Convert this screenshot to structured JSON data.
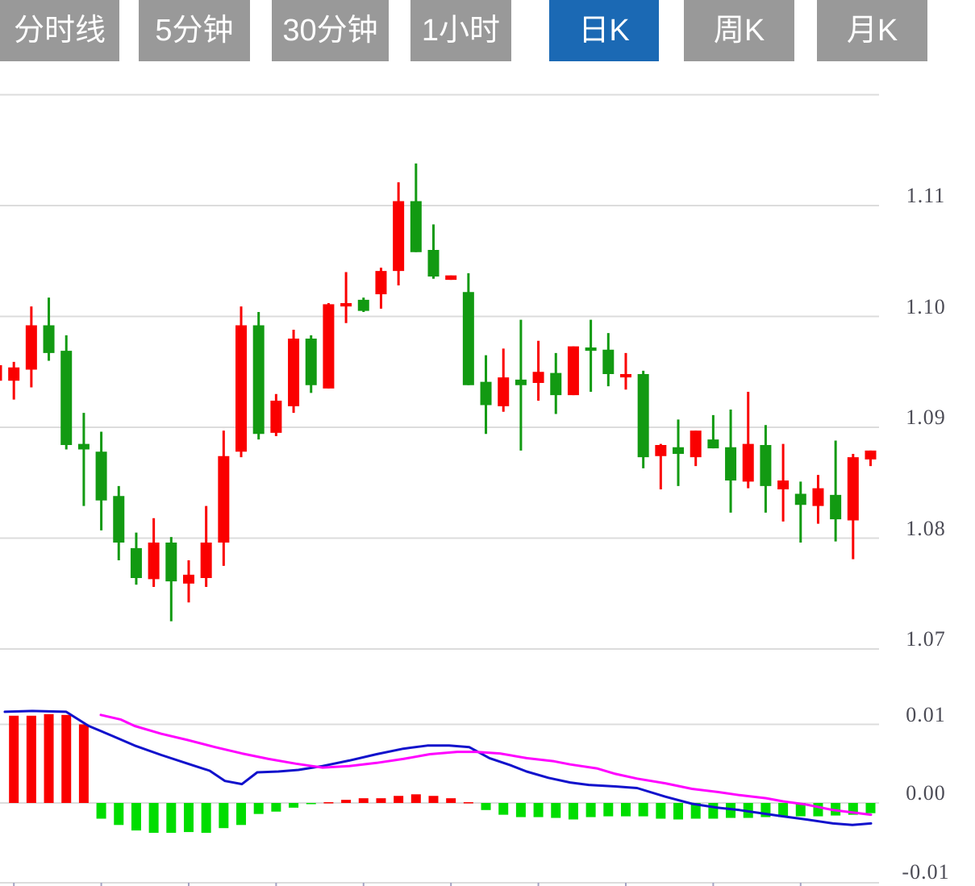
{
  "tabbar": {
    "tabs": [
      {
        "id": "timeline",
        "label": "分时线",
        "active": false
      },
      {
        "id": "5min",
        "label": "5分钟",
        "active": false
      },
      {
        "id": "30min",
        "label": "30分钟",
        "active": false
      },
      {
        "id": "1hour",
        "label": "1小时",
        "active": false
      },
      {
        "id": "daily-k",
        "label": "日K",
        "active": true
      },
      {
        "id": "weekly-k",
        "label": "周K",
        "active": false
      },
      {
        "id": "monthly-k",
        "label": "月K",
        "active": false
      }
    ]
  },
  "colors": {
    "bullish_candle": "#fa0000",
    "bearish_candle": "#129a12",
    "macd_bar_positive": "#fa0000",
    "macd_bar_negative": "#00dd00",
    "dif_line": "#1111cc",
    "dea_line": "#ff00ff",
    "gridline": "#dcdcdc",
    "axis_label": "#4b4b55",
    "axis_tick": "#a3a3c2",
    "tab_background": "#999999",
    "tab_active_background": "#1b69b4",
    "tab_text": "#ffffff"
  },
  "chart_data": {
    "type": "candlestick_with_macd",
    "price_axis": {
      "labels": [
        "1.11",
        "1.10",
        "1.09",
        "1.08",
        "1.07"
      ],
      "label_values": [
        1.11,
        1.1,
        1.09,
        1.08,
        1.07
      ],
      "gridline_values": [
        1.12,
        1.11,
        1.1,
        1.09,
        1.08,
        1.07
      ],
      "ylim": [
        1.065,
        1.12
      ],
      "grid": true,
      "legend": "none"
    },
    "macd_axis": {
      "labels": [
        "0.01",
        "0.00",
        "-0.01"
      ],
      "label_values": [
        0.01,
        0,
        -0.01
      ],
      "gridline_values": [
        0.01,
        0,
        -0.01
      ],
      "ylim": [
        -0.011,
        0.012
      ]
    },
    "candles_ohlc": [
      [
        1.0942,
        1.0956,
        1.0942,
        1.0956
      ],
      [
        1.0942,
        1.0959,
        1.0925,
        1.0954
      ],
      [
        1.0952,
        1.1009,
        1.0936,
        1.0992
      ],
      [
        1.0992,
        1.1017,
        1.096,
        1.0967
      ],
      [
        1.0969,
        1.0983,
        1.088,
        1.0884
      ],
      [
        1.0885,
        1.0913,
        1.0829,
        1.088
      ],
      [
        1.0878,
        1.0896,
        1.0807,
        1.0834
      ],
      [
        1.0838,
        1.0847,
        1.078,
        1.0796
      ],
      [
        1.0791,
        1.0805,
        1.0758,
        1.0764
      ],
      [
        1.0763,
        1.0818,
        1.0756,
        1.0796
      ],
      [
        1.0796,
        1.0801,
        1.0725,
        1.0761
      ],
      [
        1.0759,
        1.078,
        1.0742,
        1.0767
      ],
      [
        1.0764,
        1.0829,
        1.0756,
        1.0796
      ],
      [
        1.0796,
        1.0897,
        1.0775,
        1.0874
      ],
      [
        1.0878,
        1.1009,
        1.0873,
        1.0992
      ],
      [
        1.0992,
        1.1004,
        1.0889,
        1.0894
      ],
      [
        1.0895,
        1.093,
        1.0892,
        1.0924
      ],
      [
        1.0919,
        1.0988,
        1.0913,
        1.098
      ],
      [
        1.098,
        1.0983,
        1.0931,
        1.0938
      ],
      [
        1.0935,
        1.1012,
        1.0935,
        1.1011
      ],
      [
        1.1009,
        1.104,
        1.0994,
        1.1012
      ],
      [
        1.1015,
        1.1017,
        1.1004,
        1.1005
      ],
      [
        1.102,
        1.1044,
        1.1007,
        1.1041
      ],
      [
        1.1041,
        1.1121,
        1.1028,
        1.1104
      ],
      [
        1.1104,
        1.1138,
        1.1058,
        1.1058
      ],
      [
        1.106,
        1.1083,
        1.1034,
        1.1036
      ],
      [
        1.1033,
        1.1037,
        1.1033,
        1.1037
      ],
      [
        1.1022,
        1.1039,
        1.0938,
        1.0938
      ],
      [
        1.0941,
        1.0965,
        1.0894,
        1.092
      ],
      [
        1.0919,
        1.0971,
        1.0914,
        1.0945
      ],
      [
        1.0943,
        1.0997,
        1.0879,
        1.0938
      ],
      [
        1.094,
        1.0978,
        1.0924,
        1.095
      ],
      [
        1.0949,
        1.0967,
        1.0912,
        1.0929
      ],
      [
        1.0929,
        1.0973,
        1.0929,
        1.0973
      ],
      [
        1.0972,
        1.0997,
        1.0932,
        1.0969
      ],
      [
        1.097,
        1.0985,
        1.0937,
        1.0948
      ],
      [
        1.0945,
        1.0967,
        1.0934,
        1.0948
      ],
      [
        1.0948,
        1.0951,
        1.0863,
        1.0873
      ],
      [
        1.0874,
        1.0885,
        1.0844,
        1.0884
      ],
      [
        1.0882,
        1.0907,
        1.0847,
        1.0876
      ],
      [
        1.0873,
        1.0897,
        1.0865,
        1.0897
      ],
      [
        1.0889,
        1.0911,
        1.0881,
        1.0881
      ],
      [
        1.0882,
        1.0916,
        1.0823,
        1.0852
      ],
      [
        1.0851,
        1.0932,
        1.0845,
        1.0885
      ],
      [
        1.0884,
        1.0902,
        1.0823,
        1.0847
      ],
      [
        1.0844,
        1.0885,
        1.0815,
        1.0852
      ],
      [
        1.084,
        1.0851,
        1.0796,
        1.083
      ],
      [
        1.0829,
        1.0857,
        1.0813,
        1.0845
      ],
      [
        1.0839,
        1.0888,
        1.0797,
        1.0817
      ],
      [
        1.0816,
        1.0876,
        1.0781,
        1.0873
      ],
      [
        1.0871,
        1.0879,
        1.0865,
        1.0879
      ]
    ],
    "macd_hist": [
      null,
      0.0111,
      0.0111,
      0.0113,
      0.0112,
      0.01,
      -0.002,
      -0.0028,
      -0.0035,
      -0.0038,
      -0.0038,
      -0.0037,
      -0.0038,
      -0.0032,
      -0.0028,
      -0.0014,
      -0.0011,
      -0.0006,
      -0.0001,
      0.0001,
      0.0004,
      0.0006,
      0.0006,
      0.0009,
      0.0011,
      0.0009,
      0.0006,
      0.0001,
      -0.0009,
      -0.0015,
      -0.0018,
      -0.0018,
      -0.0019,
      -0.0021,
      -0.0018,
      -0.0017,
      -0.0017,
      -0.0017,
      -0.002,
      -0.0021,
      -0.002,
      -0.002,
      -0.0019,
      -0.0019,
      -0.0018,
      -0.0018,
      -0.0017,
      -0.0017,
      -0.0016,
      -0.0015,
      -0.0013
    ],
    "dif_line": [
      [
        6,
        0.0116
      ],
      [
        40,
        0.0117
      ],
      [
        82,
        0.0116
      ],
      [
        110,
        0.0098
      ],
      [
        140,
        0.0085
      ],
      [
        167,
        0.0073
      ],
      [
        200,
        0.0061
      ],
      [
        233,
        0.005
      ],
      [
        260,
        0.0041
      ],
      [
        279,
        0.0028
      ],
      [
        300,
        0.0024
      ],
      [
        319,
        0.0039
      ],
      [
        345,
        0.004
      ],
      [
        370,
        0.0042
      ],
      [
        400,
        0.0047
      ],
      [
        433,
        0.0054
      ],
      [
        467,
        0.0062
      ],
      [
        500,
        0.0069
      ],
      [
        530,
        0.0073
      ],
      [
        557,
        0.0073
      ],
      [
        582,
        0.0071
      ],
      [
        607,
        0.0057
      ],
      [
        633,
        0.0048
      ],
      [
        653,
        0.004
      ],
      [
        680,
        0.0032
      ],
      [
        707,
        0.0026
      ],
      [
        730,
        0.0023
      ],
      [
        763,
        0.0021
      ],
      [
        790,
        0.0019
      ],
      [
        825,
        0.0008
      ],
      [
        858,
        -0.0001
      ],
      [
        890,
        -0.0006
      ],
      [
        917,
        -0.0009
      ],
      [
        950,
        -0.0014
      ],
      [
        971,
        -0.0017
      ],
      [
        1000,
        -0.0021
      ],
      [
        1033,
        -0.0026
      ],
      [
        1057,
        -0.0028
      ],
      [
        1080,
        -0.0026
      ]
    ],
    "dea_line": [
      [
        125,
        0.0112
      ],
      [
        150,
        0.0106
      ],
      [
        167,
        0.0098
      ],
      [
        200,
        0.0088
      ],
      [
        233,
        0.008
      ],
      [
        267,
        0.0071
      ],
      [
        300,
        0.0063
      ],
      [
        333,
        0.0056
      ],
      [
        367,
        0.005
      ],
      [
        400,
        0.0045
      ],
      [
        433,
        0.0047
      ],
      [
        467,
        0.0051
      ],
      [
        500,
        0.0056
      ],
      [
        533,
        0.0062
      ],
      [
        567,
        0.0065
      ],
      [
        590,
        0.0065
      ],
      [
        620,
        0.0063
      ],
      [
        653,
        0.0057
      ],
      [
        687,
        0.0053
      ],
      [
        707,
        0.0049
      ],
      [
        740,
        0.0044
      ],
      [
        763,
        0.0037
      ],
      [
        790,
        0.0031
      ],
      [
        825,
        0.0025
      ],
      [
        858,
        0.0018
      ],
      [
        890,
        0.0014
      ],
      [
        917,
        0.001
      ],
      [
        950,
        0.0006
      ],
      [
        971,
        0.0002
      ],
      [
        1000,
        -0.0002
      ],
      [
        1033,
        -0.0009
      ],
      [
        1057,
        -0.0012
      ],
      [
        1080,
        -0.0015
      ]
    ],
    "x_tick_candle_indices": [
      1,
      6,
      11,
      16,
      21,
      26,
      31,
      36,
      41,
      46
    ]
  }
}
